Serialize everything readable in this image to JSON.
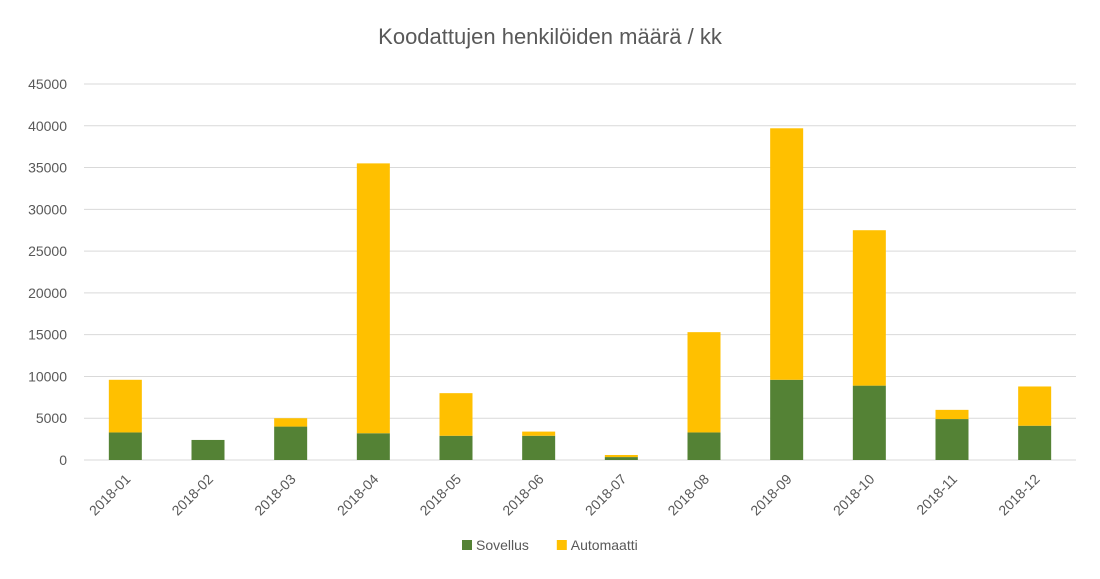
{
  "chart_data": {
    "type": "bar",
    "stacked": true,
    "title": "Koodattujen henkilöiden määrä / kk",
    "categories": [
      "2018-01",
      "2018-02",
      "2018-03",
      "2018-04",
      "2018-05",
      "2018-06",
      "2018-07",
      "2018-08",
      "2018-09",
      "2018-10",
      "2018-11",
      "2018-12"
    ],
    "series": [
      {
        "name": "Sovellus",
        "color": "#548235",
        "values": [
          3300,
          2400,
          4000,
          3200,
          2900,
          2900,
          350,
          3300,
          9600,
          8900,
          4900,
          4100
        ]
      },
      {
        "name": "Automaatti",
        "color": "#ffc000",
        "values": [
          6300,
          0,
          1000,
          32300,
          5100,
          500,
          250,
          12000,
          30100,
          18600,
          1100,
          4700
        ]
      }
    ],
    "ylim": [
      0,
      45000
    ],
    "yticks": [
      "0",
      "5000",
      "10000",
      "15000",
      "20000",
      "25000",
      "30000",
      "35000",
      "40000",
      "45000"
    ],
    "grid": true,
    "legend_position": "bottom"
  }
}
